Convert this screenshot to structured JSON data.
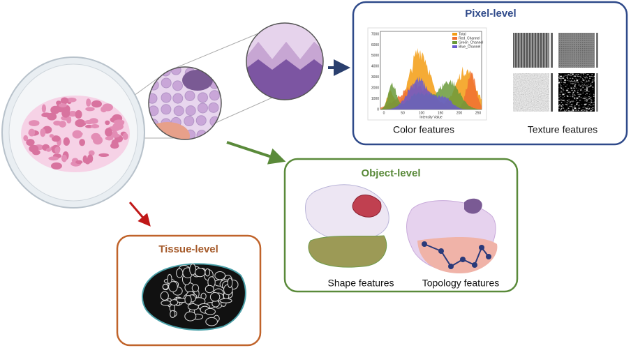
{
  "pixel_level": {
    "title": "Pixel-level",
    "histogram": {
      "legend": [
        "Total",
        "Red_Channel",
        "Green_Channel",
        "Blue_Channel"
      ],
      "x_label": "Intensity Value",
      "xticks": [
        "0",
        "50",
        "100",
        "150",
        "200",
        "250"
      ],
      "yticks": [
        "0",
        "1000",
        "2000",
        "3000",
        "4000",
        "5000",
        "6000",
        "7000"
      ]
    },
    "color_caption": "Color features",
    "texture_caption": "Texture features"
  },
  "object_level": {
    "title": "Object-level",
    "shape_caption": "Shape features",
    "topology_caption": "Topology features"
  },
  "tissue_level": {
    "title": "Tissue-level"
  }
}
